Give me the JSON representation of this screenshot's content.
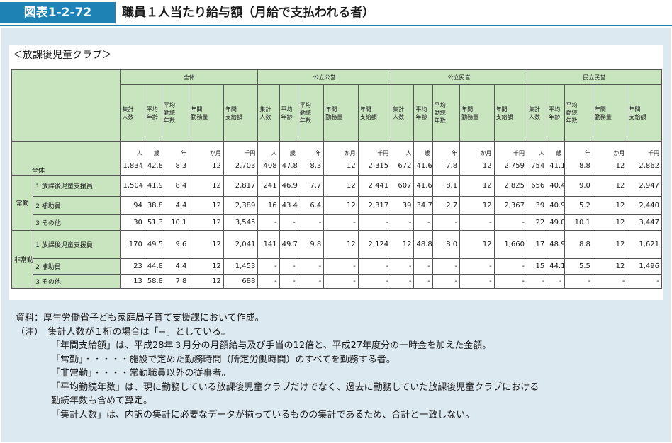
{
  "header": {
    "figure_label": "図表1-2-72",
    "title": "職員１人当たり給与額（月給で支払われる者）"
  },
  "subtitle": "＜放課後児童クラブ＞",
  "groups": [
    "全体",
    "公立公営",
    "公立民営",
    "民立民営"
  ],
  "columns": [
    "集計人数",
    "平均年齢",
    "平均勤続年数",
    "年間勤務量",
    "年間支給額"
  ],
  "column_lines": [
    [
      "集計",
      "人数"
    ],
    [
      "平均",
      "年齢"
    ],
    [
      "平均",
      "勤続",
      "年数"
    ],
    [
      "年間",
      "勤務量"
    ],
    [
      "年間",
      "支給額"
    ]
  ],
  "units": [
    "人",
    "歳",
    "年",
    "か月",
    "千円"
  ],
  "row_labels": {
    "total": "全体",
    "joukin": "常勤",
    "hijoukin": "非常勤"
  },
  "rows": [
    {
      "cat": "全体",
      "sub": "",
      "values": [
        "1,834",
        "42.8",
        "8.3",
        "12",
        "2,703",
        "408",
        "47.8",
        "8.3",
        "12",
        "2,315",
        "672",
        "41.6",
        "7.8",
        "12",
        "2,759",
        "754",
        "41.1",
        "8.8",
        "12",
        "2,862"
      ]
    },
    {
      "cat": "常勤",
      "sub": "1 放課後児童支援員",
      "values": [
        "1,504",
        "41.9",
        "8.4",
        "12",
        "2,817",
        "241",
        "46.9",
        "7.7",
        "12",
        "2,441",
        "607",
        "41.6",
        "8.1",
        "12",
        "2,825",
        "656",
        "40.4",
        "9.0",
        "12",
        "2,947"
      ]
    },
    {
      "cat": "常勤",
      "sub": "2 補助員",
      "values": [
        "94",
        "38.8",
        "4.4",
        "12",
        "2,389",
        "16",
        "43.4",
        "6.4",
        "12",
        "2,317",
        "39",
        "34.7",
        "2.7",
        "12",
        "2,367",
        "39",
        "40.9",
        "5.2",
        "12",
        "2,440"
      ]
    },
    {
      "cat": "常勤",
      "sub": "3 その他",
      "values": [
        "30",
        "51.3",
        "10.1",
        "12",
        "3,545",
        "-",
        "-",
        "-",
        "-",
        "-",
        "-",
        "-",
        "-",
        "-",
        "-",
        "22",
        "49.0",
        "10.1",
        "12",
        "3,447"
      ]
    },
    {
      "cat": "非常勤",
      "sub": "1 放課後児童支援員",
      "values": [
        "170",
        "49.5",
        "9.6",
        "12",
        "2,041",
        "141",
        "49.7",
        "9.8",
        "12",
        "2,124",
        "12",
        "48.8",
        "8.0",
        "12",
        "1,660",
        "17",
        "48.9",
        "8.8",
        "12",
        "1,621"
      ]
    },
    {
      "cat": "非常勤",
      "sub": "2 補助員",
      "values": [
        "23",
        "44.8",
        "4.4",
        "12",
        "1,453",
        "-",
        "-",
        "-",
        "-",
        "-",
        "-",
        "-",
        "-",
        "-",
        "-",
        "15",
        "44.1",
        "5.5",
        "12",
        "1,496"
      ]
    },
    {
      "cat": "非常勤",
      "sub": "3 その他",
      "values": [
        "13",
        "58.8",
        "7.8",
        "12",
        "688",
        "-",
        "-",
        "-",
        "-",
        "-",
        "-",
        "-",
        "-",
        "-",
        "-",
        "-",
        "-",
        "-",
        "-",
        "-"
      ]
    }
  ],
  "notes": {
    "source": "資料：厚生労働省子ども家庭局子育て支援課において作成。",
    "note_head": "（注）　集計人数が１桁の場合は「−」としている。",
    "lines": [
      "「年間支給額」は、平成28年３月分の月額給与及び手当の12倍と、平成27年度分の一時金を加えた金額。",
      "「常勤」・・・・・施設で定めた勤務時間（所定労働時間）のすべてを勤務する者。",
      "「非常勤」・・・・常勤職員以外の従事者。",
      "「平均勤続年数」は、現に勤務している放課後児童クラブだけでなく、過去に勤務していた放課後児童クラブにおける",
      "勤続年数も含めて算定。",
      "「集計人数」は、内訳の集計に必要なデータが揃っているものの集計であるため、合計と一致しない。"
    ]
  }
}
